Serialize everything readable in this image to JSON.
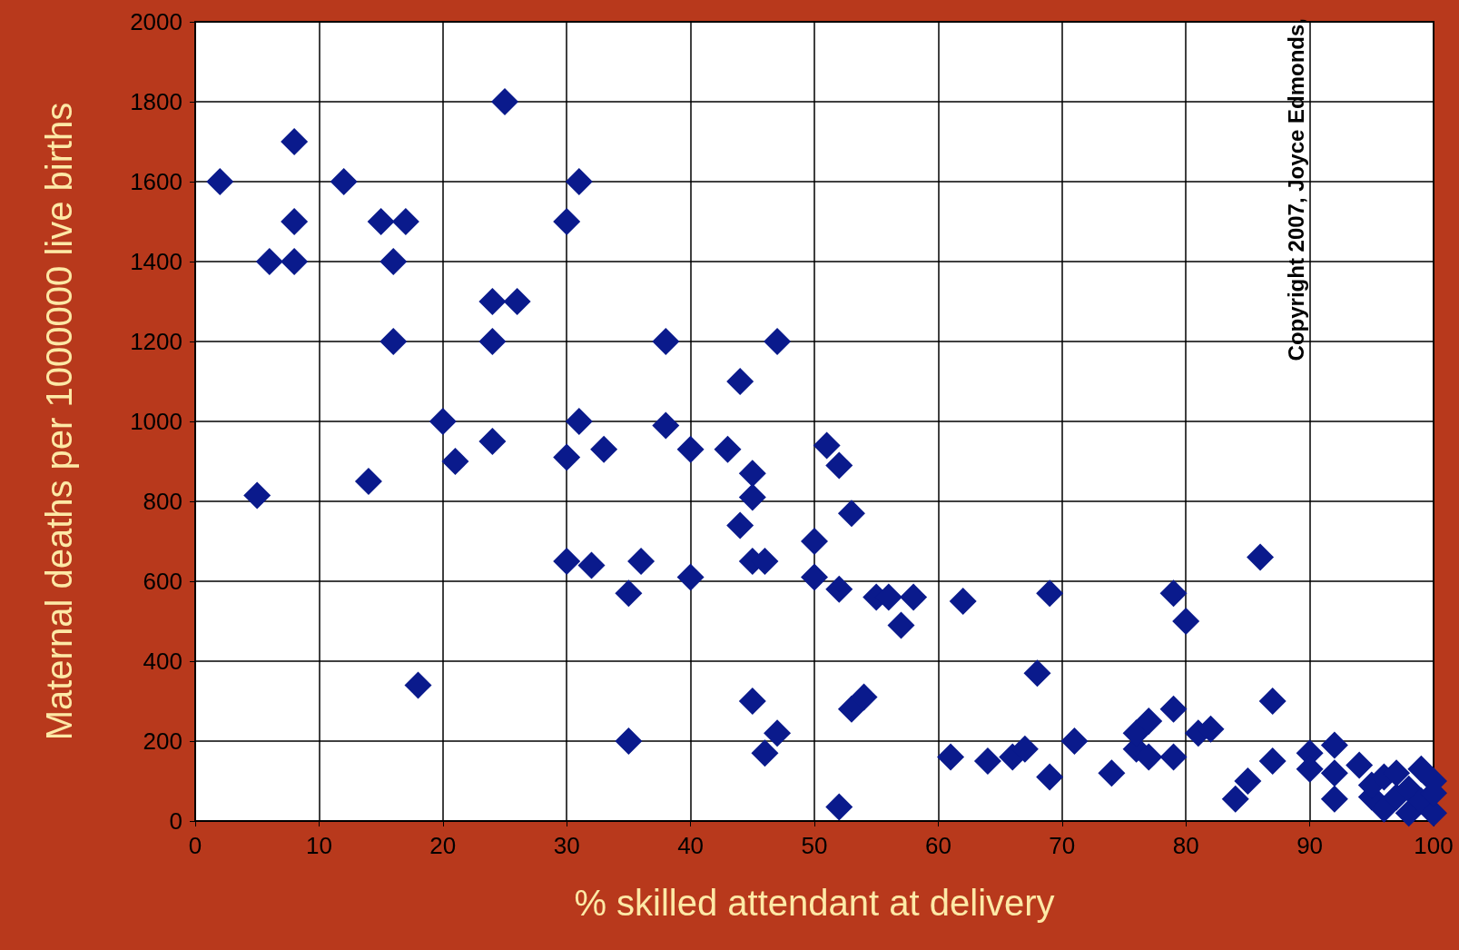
{
  "chart_data": {
    "type": "scatter",
    "xlabel": "% skilled attendant at delivery",
    "ylabel": "Maternal deaths per 1000000 live births",
    "annotations": [
      "Copyright 2007, Joyce Edmonds,"
    ],
    "x": [
      2,
      5,
      6,
      8,
      8,
      8,
      12,
      14,
      15,
      16,
      16,
      17,
      18,
      20,
      21,
      24,
      24,
      24,
      25,
      26,
      30,
      30,
      30,
      31,
      31,
      32,
      33,
      35,
      35,
      36,
      38,
      38,
      40,
      40,
      43,
      44,
      44,
      45,
      45,
      45,
      45,
      46,
      46,
      47,
      47,
      50,
      50,
      51,
      52,
      52,
      52,
      53,
      53,
      54,
      55,
      56,
      57,
      58,
      61,
      62,
      64,
      66,
      67,
      68,
      69,
      69,
      71,
      74,
      76,
      76,
      77,
      77,
      79,
      79,
      79,
      80,
      81,
      82,
      84,
      85,
      86,
      87,
      87,
      90,
      90,
      92,
      92,
      92,
      94,
      95,
      95,
      96,
      96,
      97,
      97,
      98,
      98,
      99,
      99,
      100,
      100,
      100
    ],
    "series": [
      {
        "color": "#0a1a8c",
        "values": [
          1600,
          815,
          1400,
          1700,
          1500,
          1400,
          1600,
          850,
          1500,
          1400,
          1200,
          1500,
          340,
          1000,
          900,
          1300,
          1200,
          950,
          1800,
          1300,
          1500,
          910,
          650,
          1600,
          1000,
          640,
          930,
          570,
          200,
          650,
          1200,
          990,
          930,
          610,
          930,
          1100,
          740,
          870,
          810,
          650,
          300,
          650,
          170,
          1200,
          220,
          700,
          610,
          940,
          890,
          580,
          35,
          770,
          280,
          310,
          560,
          560,
          490,
          560,
          160,
          550,
          150,
          160,
          180,
          370,
          570,
          110,
          200,
          120,
          180,
          220,
          250,
          160,
          570,
          280,
          160,
          500,
          220,
          230,
          55,
          100,
          660,
          300,
          150,
          170,
          130,
          190,
          120,
          55,
          140,
          60,
          90,
          30,
          110,
          60,
          120,
          20,
          80,
          50,
          130,
          20,
          70,
          100
        ]
      }
    ],
    "xlim": [
      0,
      100
    ],
    "xticks": [
      0,
      10,
      20,
      30,
      40,
      50,
      60,
      70,
      80,
      90,
      100
    ],
    "ylim": [
      0,
      2000
    ],
    "yticks": [
      0,
      200,
      400,
      600,
      800,
      1000,
      1200,
      1400,
      1600,
      1800,
      2000
    ],
    "grid": true,
    "marker": "diamond"
  }
}
